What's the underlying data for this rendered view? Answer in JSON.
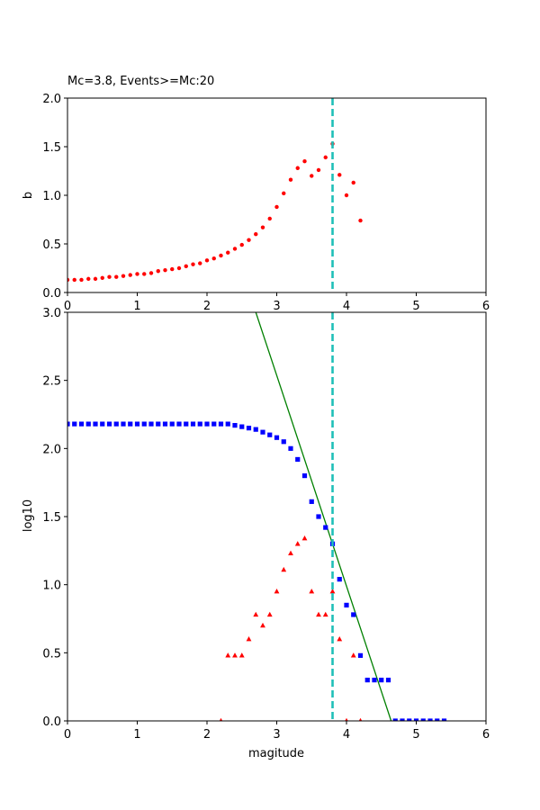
{
  "chart_data": [
    {
      "type": "scatter",
      "title": "Mc=3.8, Events>=Mc:20",
      "xlabel": "",
      "ylabel": "b",
      "xlim": [
        0,
        6
      ],
      "ylim": [
        0,
        2.0
      ],
      "xticks": [
        "0",
        "1",
        "2",
        "3",
        "4",
        "5",
        "6"
      ],
      "yticks": [
        "0.0",
        "0.5",
        "1.0",
        "1.5",
        "2.0"
      ],
      "grid": false,
      "series": [
        {
          "color": "#ff0000",
          "marker": "circle",
          "x": [
            0.0,
            0.1,
            0.2,
            0.3,
            0.4,
            0.5,
            0.6,
            0.7,
            0.8,
            0.9,
            1.0,
            1.1,
            1.2,
            1.3,
            1.4,
            1.5,
            1.6,
            1.7,
            1.8,
            1.9,
            2.0,
            2.1,
            2.2,
            2.3,
            2.4,
            2.5,
            2.6,
            2.7,
            2.8,
            2.9,
            3.0,
            3.1,
            3.2,
            3.3,
            3.4,
            3.5,
            3.6,
            3.7,
            3.8,
            3.9,
            4.0,
            4.1,
            4.2
          ],
          "y": [
            0.13,
            0.13,
            0.13,
            0.14,
            0.14,
            0.15,
            0.16,
            0.16,
            0.17,
            0.18,
            0.19,
            0.19,
            0.2,
            0.22,
            0.23,
            0.24,
            0.25,
            0.27,
            0.29,
            0.3,
            0.33,
            0.35,
            0.38,
            0.41,
            0.45,
            0.49,
            0.54,
            0.6,
            0.67,
            0.76,
            0.88,
            1.02,
            1.16,
            1.28,
            1.35,
            1.2,
            1.26,
            1.39,
            1.53,
            1.21,
            1.0,
            1.13,
            0.74
          ]
        }
      ],
      "vline": {
        "x": 3.8,
        "color": "#1fbfb8",
        "style": "dashed"
      }
    },
    {
      "type": "scatter",
      "title": "",
      "xlabel": "magitude",
      "ylabel": "log10",
      "xlim": [
        0,
        6
      ],
      "ylim": [
        0,
        3.0
      ],
      "xticks": [
        "0",
        "1",
        "2",
        "3",
        "4",
        "5",
        "6"
      ],
      "yticks": [
        "0.0",
        "0.5",
        "1.0",
        "1.5",
        "2.0",
        "2.5",
        "3.0"
      ],
      "grid": false,
      "series": [
        {
          "color": "#0000ff",
          "marker": "square",
          "x": [
            0.0,
            0.1,
            0.2,
            0.3,
            0.4,
            0.5,
            0.6,
            0.7,
            0.8,
            0.9,
            1.0,
            1.1,
            1.2,
            1.3,
            1.4,
            1.5,
            1.6,
            1.7,
            1.8,
            1.9,
            2.0,
            2.1,
            2.2,
            2.3,
            2.4,
            2.5,
            2.6,
            2.7,
            2.8,
            2.9,
            3.0,
            3.1,
            3.2,
            3.3,
            3.4,
            3.5,
            3.6,
            3.7,
            3.8,
            3.9,
            4.0,
            4.1,
            4.2,
            4.3,
            4.4,
            4.5,
            4.6,
            4.7,
            4.8,
            4.9,
            5.0,
            5.1,
            5.2,
            5.3,
            5.4
          ],
          "y": [
            2.18,
            2.18,
            2.18,
            2.18,
            2.18,
            2.18,
            2.18,
            2.18,
            2.18,
            2.18,
            2.18,
            2.18,
            2.18,
            2.18,
            2.18,
            2.18,
            2.18,
            2.18,
            2.18,
            2.18,
            2.18,
            2.18,
            2.18,
            2.18,
            2.17,
            2.16,
            2.15,
            2.14,
            2.12,
            2.1,
            2.08,
            2.05,
            2.0,
            1.92,
            1.8,
            1.61,
            1.5,
            1.42,
            1.3,
            1.04,
            0.85,
            0.78,
            0.48,
            0.3,
            0.3,
            0.3,
            0.3,
            0.0,
            0.0,
            0.0,
            0.0,
            0.0,
            0.0,
            0.0,
            0.0
          ]
        },
        {
          "color": "#ff0000",
          "marker": "triangle",
          "x": [
            2.2,
            2.3,
            2.4,
            2.5,
            2.6,
            2.7,
            2.8,
            2.9,
            3.0,
            3.1,
            3.2,
            3.3,
            3.4,
            3.5,
            3.6,
            3.7,
            3.8,
            3.9,
            4.0,
            4.1,
            4.2
          ],
          "y": [
            0.0,
            0.48,
            0.48,
            0.48,
            0.6,
            0.78,
            0.7,
            0.78,
            0.95,
            1.11,
            1.23,
            1.3,
            1.34,
            0.95,
            0.78,
            0.78,
            0.95,
            0.6,
            0.0,
            0.48,
            0.0
          ]
        }
      ],
      "fit_line": {
        "x": [
          2.7,
          4.64
        ],
        "y": [
          3.0,
          0.0
        ],
        "color": "#008000"
      },
      "vline": {
        "x": 3.8,
        "color": "#1fbfb8",
        "style": "dashed"
      }
    }
  ]
}
